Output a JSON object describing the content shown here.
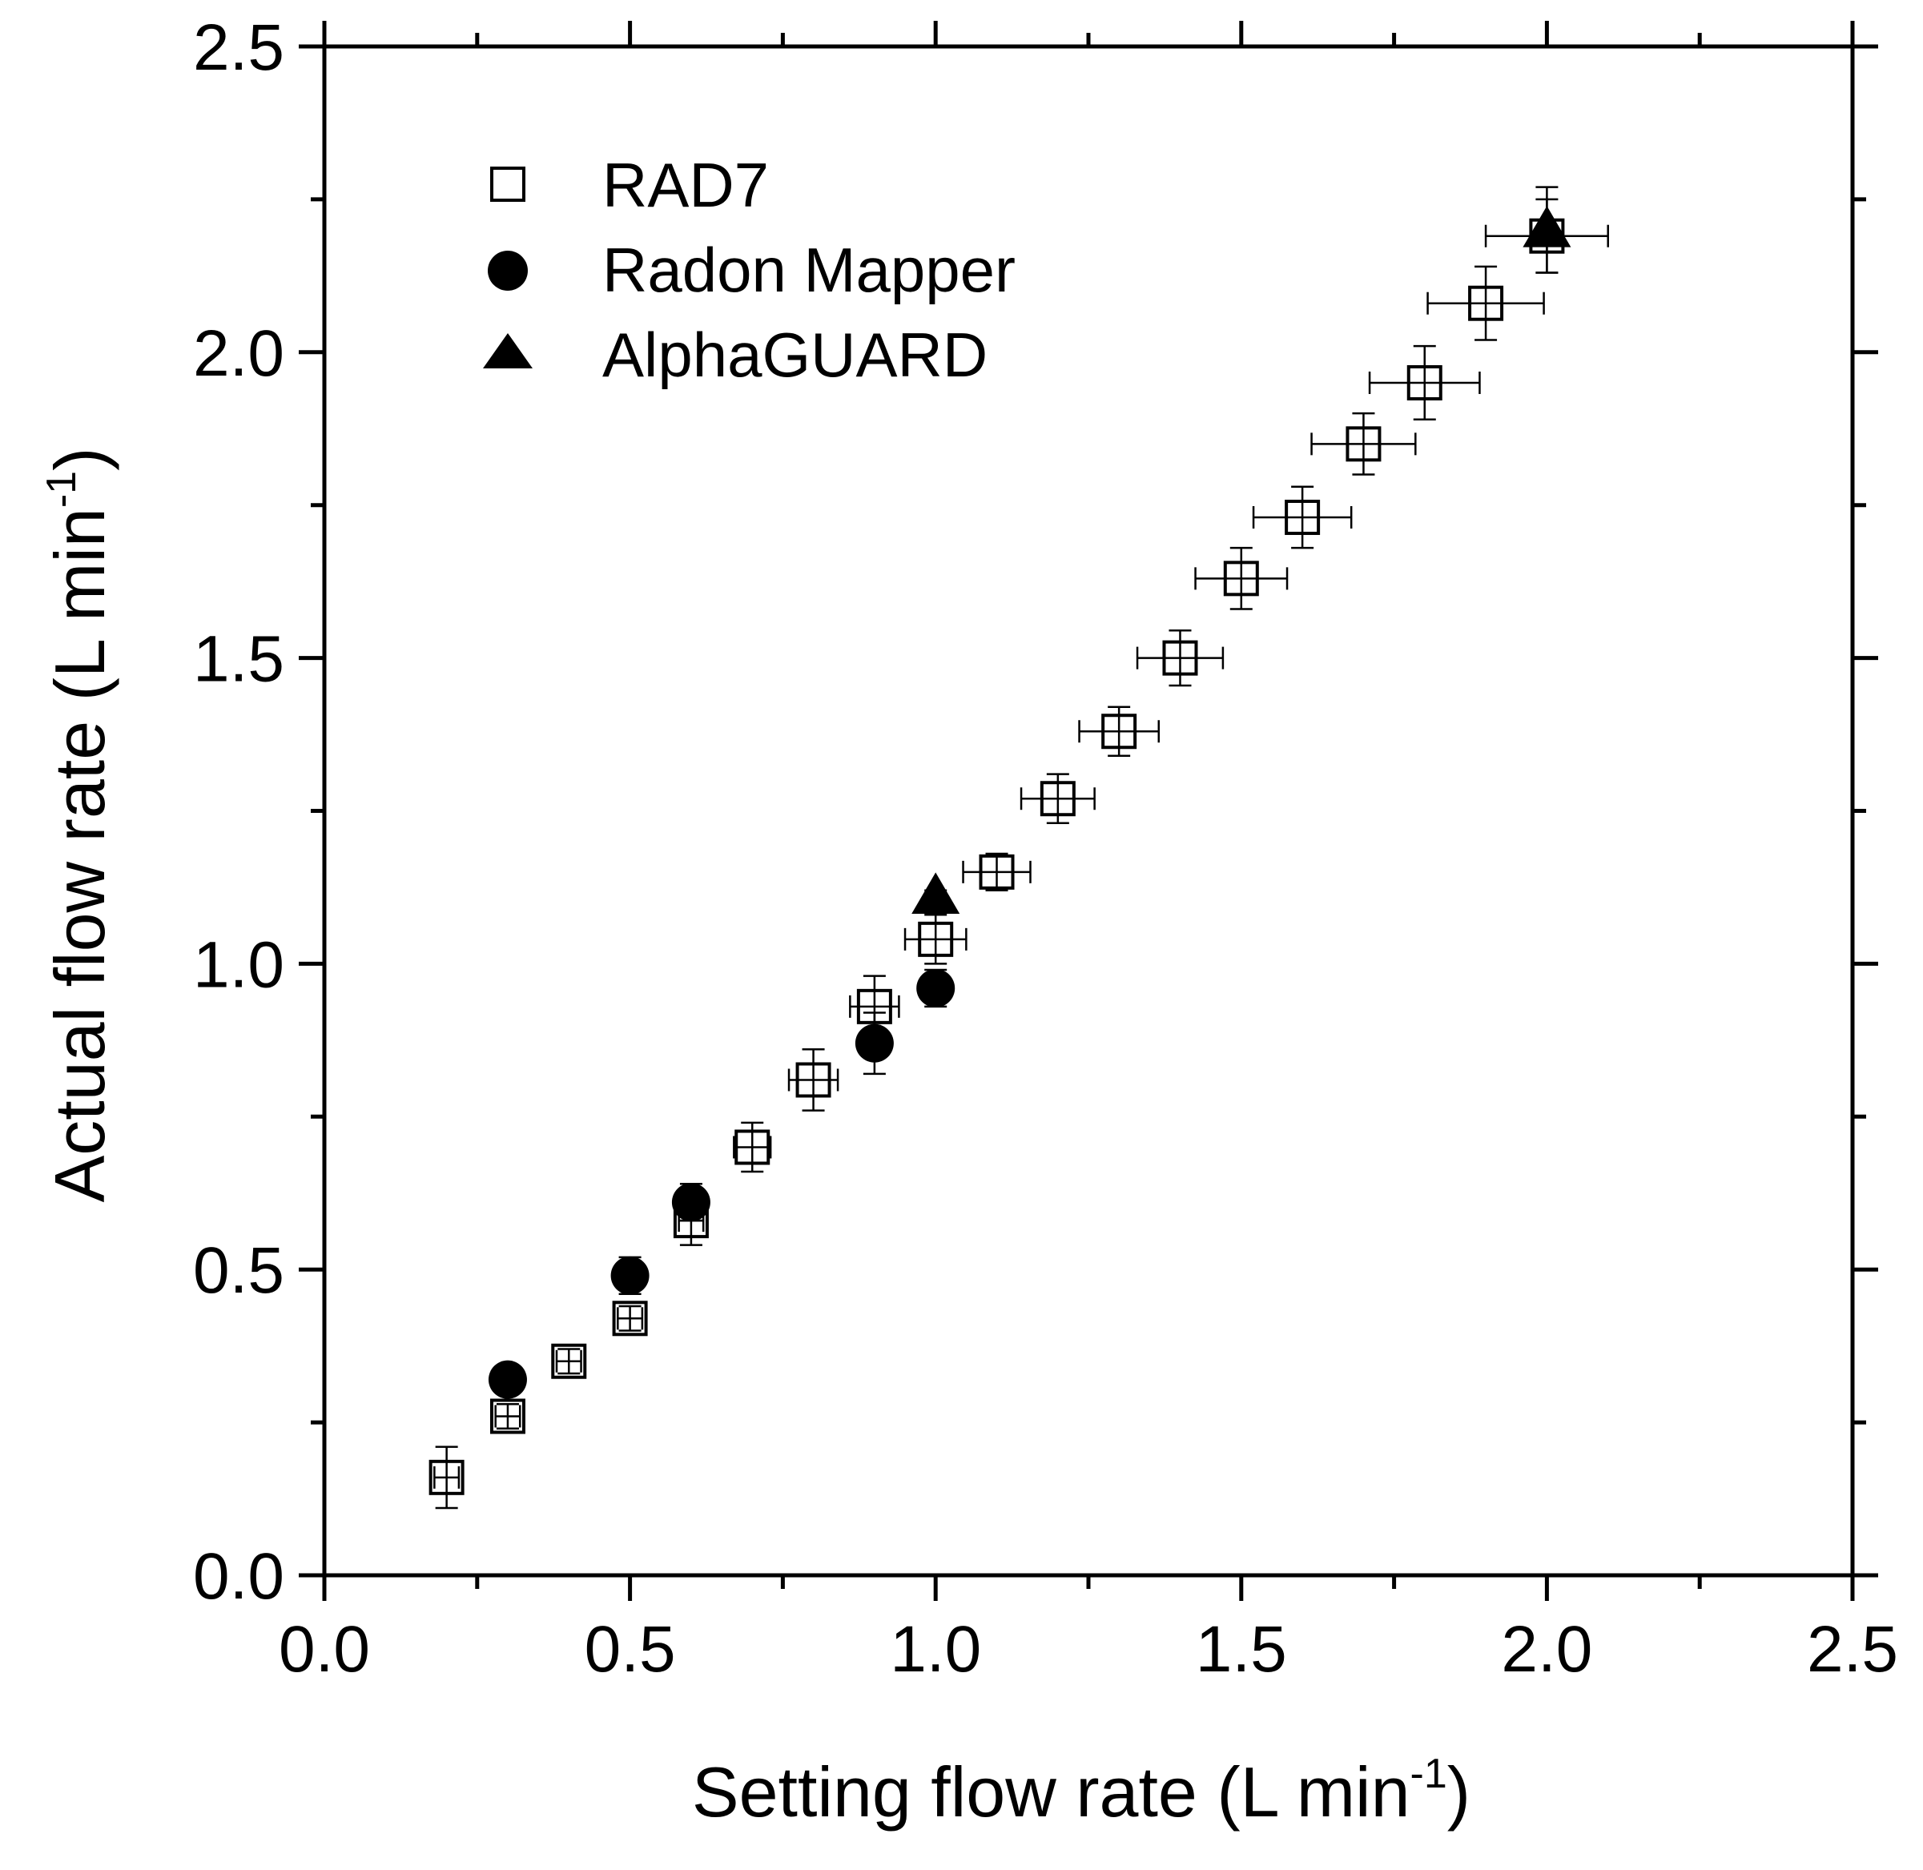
{
  "chart_data": {
    "type": "scatter",
    "xlabel": {
      "main": "Setting flow rate (L min",
      "sup": "-1",
      "close": ")"
    },
    "ylabel": {
      "main": "Actual flow rate (L min",
      "sup": "-1",
      "close": ")"
    },
    "xlim": [
      0.0,
      2.5
    ],
    "ylim": [
      0.0,
      2.5
    ],
    "xticks": [
      "0.0",
      "0.5",
      "1.0",
      "1.5",
      "2.0",
      "2.5"
    ],
    "yticks": [
      "0.0",
      "0.5",
      "1.0",
      "1.5",
      "2.0",
      "2.5"
    ],
    "grid": false,
    "legend_position": "top-left",
    "series": [
      {
        "name": "RAD7",
        "marker": "open-square",
        "points": [
          {
            "x": 0.2,
            "y": 0.16,
            "xerr": 0.02,
            "yerr": 0.05
          },
          {
            "x": 0.3,
            "y": 0.26,
            "xerr": 0.02,
            "yerr": 0.02
          },
          {
            "x": 0.4,
            "y": 0.35,
            "xerr": 0.02,
            "yerr": 0.02
          },
          {
            "x": 0.5,
            "y": 0.42,
            "xerr": 0.02,
            "yerr": 0.02
          },
          {
            "x": 0.6,
            "y": 0.58,
            "xerr": 0.02,
            "yerr": 0.04
          },
          {
            "x": 0.7,
            "y": 0.7,
            "xerr": 0.03,
            "yerr": 0.04
          },
          {
            "x": 0.8,
            "y": 0.81,
            "xerr": 0.04,
            "yerr": 0.05
          },
          {
            "x": 0.9,
            "y": 0.93,
            "xerr": 0.04,
            "yerr": 0.05
          },
          {
            "x": 1.0,
            "y": 1.04,
            "xerr": 0.05,
            "yerr": 0.04
          },
          {
            "x": 1.1,
            "y": 1.15,
            "xerr": 0.055,
            "yerr": 0.03
          },
          {
            "x": 1.2,
            "y": 1.27,
            "xerr": 0.06,
            "yerr": 0.04
          },
          {
            "x": 1.3,
            "y": 1.38,
            "xerr": 0.065,
            "yerr": 0.04
          },
          {
            "x": 1.4,
            "y": 1.5,
            "xerr": 0.07,
            "yerr": 0.045
          },
          {
            "x": 1.5,
            "y": 1.63,
            "xerr": 0.075,
            "yerr": 0.05
          },
          {
            "x": 1.6,
            "y": 1.73,
            "xerr": 0.08,
            "yerr": 0.05
          },
          {
            "x": 1.7,
            "y": 1.85,
            "xerr": 0.085,
            "yerr": 0.05
          },
          {
            "x": 1.8,
            "y": 1.95,
            "xerr": 0.09,
            "yerr": 0.06
          },
          {
            "x": 1.9,
            "y": 2.08,
            "xerr": 0.095,
            "yerr": 0.06
          },
          {
            "x": 2.0,
            "y": 2.19,
            "xerr": 0.1,
            "yerr": 0.06
          }
        ]
      },
      {
        "name": "Radon Mapper",
        "marker": "filled-circle",
        "points": [
          {
            "x": 0.3,
            "y": 0.32,
            "xerr": 0,
            "yerr": 0.01
          },
          {
            "x": 0.5,
            "y": 0.49,
            "xerr": 0,
            "yerr": 0.03
          },
          {
            "x": 0.6,
            "y": 0.61,
            "xerr": 0,
            "yerr": 0.03
          },
          {
            "x": 0.9,
            "y": 0.87,
            "xerr": 0,
            "yerr": 0.05
          },
          {
            "x": 1.0,
            "y": 0.96,
            "xerr": 0,
            "yerr": 0.03
          }
        ]
      },
      {
        "name": "AlphaGUARD",
        "marker": "filled-triangle",
        "points": [
          {
            "x": 1.0,
            "y": 1.11,
            "xerr": 0,
            "yerr": 0.01
          },
          {
            "x": 2.0,
            "y": 2.2,
            "xerr": 0,
            "yerr": 0.07
          }
        ]
      }
    ]
  }
}
